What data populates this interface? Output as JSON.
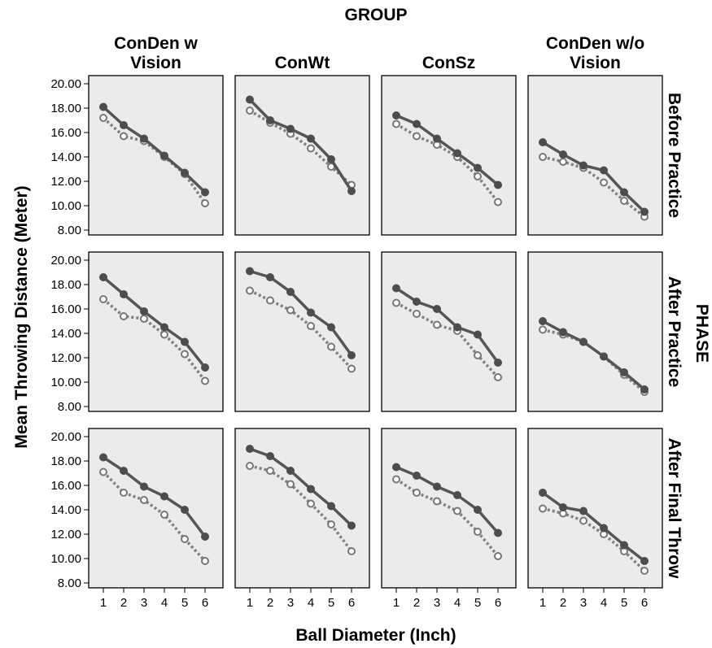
{
  "chart_data": {
    "type": "line",
    "group_title": "GROUP",
    "phase_title": "PHASE",
    "xlabel": "Ball Diameter (Inch)",
    "ylabel": "Mean Throwing Distance (Meter)",
    "ylim": [
      8,
      20
    ],
    "yticks": [
      "8.00",
      "10.00",
      "12.00",
      "14.00",
      "16.00",
      "18.00",
      "20.00"
    ],
    "x": [
      1,
      2,
      3,
      4,
      5,
      6
    ],
    "grid": false,
    "columns": [
      {
        "line1": "ConDen w",
        "line2": "Vision"
      },
      {
        "line1": "",
        "line2": "ConWt"
      },
      {
        "line1": "",
        "line2": "ConSz"
      },
      {
        "line1": "ConDen w/o",
        "line2": "Vision"
      }
    ],
    "rows": [
      "Before Practice",
      "After Practice",
      "After Final Throw"
    ],
    "series_styles": [
      {
        "line": "solid",
        "marker": "filled-circle",
        "color": "#555555"
      },
      {
        "line": "dotted",
        "marker": "open-circle",
        "color": "#808080"
      }
    ],
    "panels": [
      [
        {
          "solid": [
            18.1,
            16.6,
            15.5,
            14.1,
            12.7,
            11.1
          ],
          "dotted": [
            17.2,
            15.7,
            15.3,
            14.0,
            12.6,
            10.2
          ]
        },
        {
          "solid": [
            18.7,
            17.0,
            16.3,
            15.5,
            13.8,
            11.2
          ],
          "dotted": [
            17.8,
            16.8,
            15.9,
            14.7,
            13.2,
            11.7
          ]
        },
        {
          "solid": [
            17.4,
            16.7,
            15.5,
            14.3,
            13.1,
            11.7
          ],
          "dotted": [
            16.7,
            15.7,
            15.0,
            14.0,
            12.4,
            10.3
          ]
        },
        {
          "solid": [
            15.2,
            14.2,
            13.3,
            12.9,
            11.1,
            9.5
          ],
          "dotted": [
            14.0,
            13.6,
            13.1,
            11.9,
            10.4,
            9.1
          ]
        }
      ],
      [
        {
          "solid": [
            18.6,
            17.2,
            15.8,
            14.5,
            13.3,
            11.2
          ],
          "dotted": [
            16.8,
            15.4,
            15.2,
            13.9,
            12.3,
            10.1
          ]
        },
        {
          "solid": [
            19.1,
            18.6,
            17.4,
            15.7,
            14.5,
            12.2
          ],
          "dotted": [
            17.5,
            16.7,
            15.9,
            14.6,
            12.9,
            11.1
          ]
        },
        {
          "solid": [
            17.7,
            16.6,
            16.0,
            14.5,
            13.9,
            11.6
          ],
          "dotted": [
            16.5,
            15.6,
            14.7,
            14.2,
            12.2,
            10.4
          ]
        },
        {
          "solid": [
            15.0,
            14.1,
            13.3,
            12.1,
            10.8,
            9.4
          ],
          "dotted": [
            14.3,
            13.9,
            13.3,
            12.1,
            10.6,
            9.2
          ]
        }
      ],
      [
        {
          "solid": [
            18.3,
            17.2,
            15.9,
            15.1,
            14.0,
            11.8
          ],
          "dotted": [
            17.1,
            15.4,
            14.8,
            13.6,
            11.6,
            9.8
          ]
        },
        {
          "solid": [
            19.0,
            18.4,
            17.2,
            15.7,
            14.3,
            12.7
          ],
          "dotted": [
            17.6,
            17.2,
            16.1,
            14.5,
            12.8,
            10.6
          ]
        },
        {
          "solid": [
            17.5,
            16.8,
            15.9,
            15.2,
            14.0,
            12.1
          ],
          "dotted": [
            16.5,
            15.4,
            14.7,
            13.9,
            12.2,
            10.2
          ]
        },
        {
          "solid": [
            15.4,
            14.2,
            13.9,
            12.5,
            11.1,
            9.8
          ],
          "dotted": [
            14.1,
            13.7,
            13.1,
            12.0,
            10.6,
            9.0
          ]
        }
      ]
    ]
  }
}
